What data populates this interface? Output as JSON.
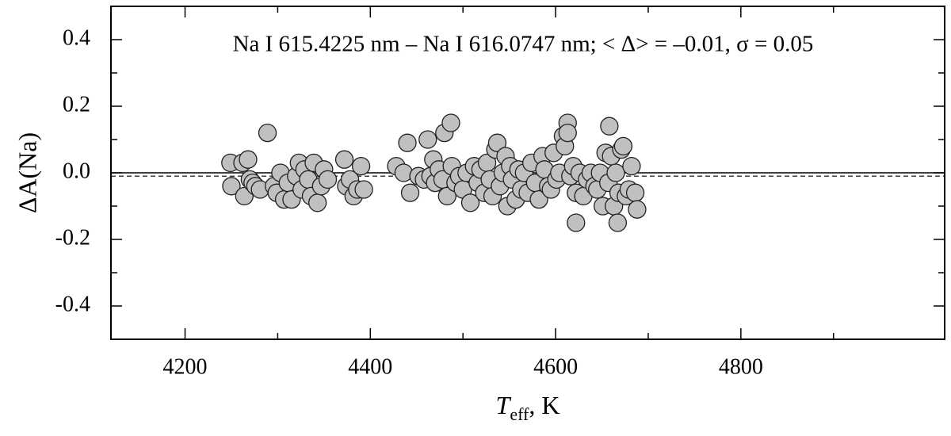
{
  "chart_data": {
    "type": "scatter",
    "annotation": "Na I 615.4225 nm  – Na I 616.0747 nm; < Δ> = –0.01, σ = 0.05",
    "ylabel": "ΔA(Na)",
    "xlabel": {
      "main": "T",
      "sub": "eff",
      "rest": ", K"
    },
    "xlim": [
      4120,
      5020
    ],
    "ylim": [
      -0.5,
      0.5
    ],
    "xticks": [
      4200,
      4400,
      4600,
      4800
    ],
    "yticks": [
      {
        "value": -0.4,
        "label": "-0.4"
      },
      {
        "value": -0.2,
        "label": "-0.2"
      },
      {
        "value": 0,
        "label": "0.0"
      },
      0.2,
      0.4
    ],
    "xticks_minor": [
      4300,
      4500,
      4700,
      4900
    ],
    "yticks_minor": [
      -0.3,
      -0.1,
      0.1,
      0.3
    ],
    "hlines": [
      {
        "y": 0,
        "style": "solid"
      },
      {
        "y": -0.01,
        "style": "dashed"
      }
    ],
    "color": "#c0c0c0",
    "x": [
      4249,
      4250,
      4262,
      4264,
      4268,
      4270,
      4273,
      4276,
      4281,
      4289,
      4296,
      4299,
      4303,
      4307,
      4311,
      4315,
      4320,
      4323,
      4326,
      4329,
      4333,
      4336,
      4339,
      4343,
      4347,
      4350,
      4354,
      4372,
      4374,
      4378,
      4382,
      4386,
      4390,
      4393,
      4428,
      4436,
      4440,
      4443,
      4452,
      4458,
      4462,
      4465,
      4468,
      4470,
      4474,
      4478,
      4480,
      4483,
      4487,
      4488,
      4492,
      4496,
      4500,
      4504,
      4508,
      4512,
      4516,
      4519,
      4523,
      4526,
      4529,
      4532,
      4535,
      4537,
      4540,
      4543,
      4546,
      4548,
      4551,
      4553,
      4557,
      4560,
      4563,
      4566,
      4570,
      4574,
      4578,
      4582,
      4586,
      4588,
      4592,
      4595,
      4598,
      4601,
      4604,
      4608,
      4610,
      4613,
      4613,
      4616,
      4619,
      4622,
      4622,
      4626,
      4630,
      4634,
      4638,
      4642,
      4645,
      4648,
      4651,
      4654,
      4657,
      4658,
      4660,
      4663,
      4665,
      4667,
      4668,
      4671,
      4673,
      4676,
      4679,
      4682,
      4686,
      4688
    ],
    "values": [
      0.03,
      -0.04,
      0.03,
      -0.07,
      0.04,
      -0.02,
      -0.03,
      -0.04,
      -0.05,
      0.12,
      -0.04,
      -0.06,
      0.0,
      -0.08,
      -0.03,
      -0.08,
      -0.01,
      0.03,
      -0.05,
      0.01,
      -0.02,
      -0.07,
      0.03,
      -0.09,
      -0.04,
      0.01,
      -0.02,
      0.04,
      -0.04,
      -0.02,
      -0.07,
      -0.05,
      0.02,
      -0.05,
      0.02,
      0.0,
      0.09,
      -0.06,
      -0.01,
      -0.02,
      0.1,
      -0.01,
      0.04,
      -0.03,
      0.01,
      -0.02,
      0.12,
      -0.07,
      0.15,
      0.02,
      -0.03,
      -0.01,
      -0.05,
      0.0,
      -0.09,
      0.02,
      -0.03,
      0.01,
      -0.06,
      0.03,
      -0.02,
      -0.07,
      0.07,
      0.09,
      -0.04,
      0.0,
      0.05,
      -0.1,
      0.02,
      -0.02,
      -0.08,
      0.01,
      -0.05,
      0.0,
      -0.06,
      0.03,
      -0.03,
      -0.08,
      0.05,
      0.01,
      -0.04,
      -0.05,
      0.06,
      -0.02,
      0.0,
      0.11,
      0.08,
      0.15,
      0.12,
      -0.01,
      0.02,
      -0.06,
      -0.15,
      0.0,
      -0.07,
      -0.02,
      0.0,
      -0.04,
      -0.05,
      0.0,
      -0.1,
      0.06,
      -0.03,
      0.14,
      0.05,
      -0.1,
      0.0,
      -0.15,
      -0.06,
      0.07,
      0.08,
      -0.07,
      -0.05,
      0.02,
      -0.06,
      -0.11
    ]
  }
}
